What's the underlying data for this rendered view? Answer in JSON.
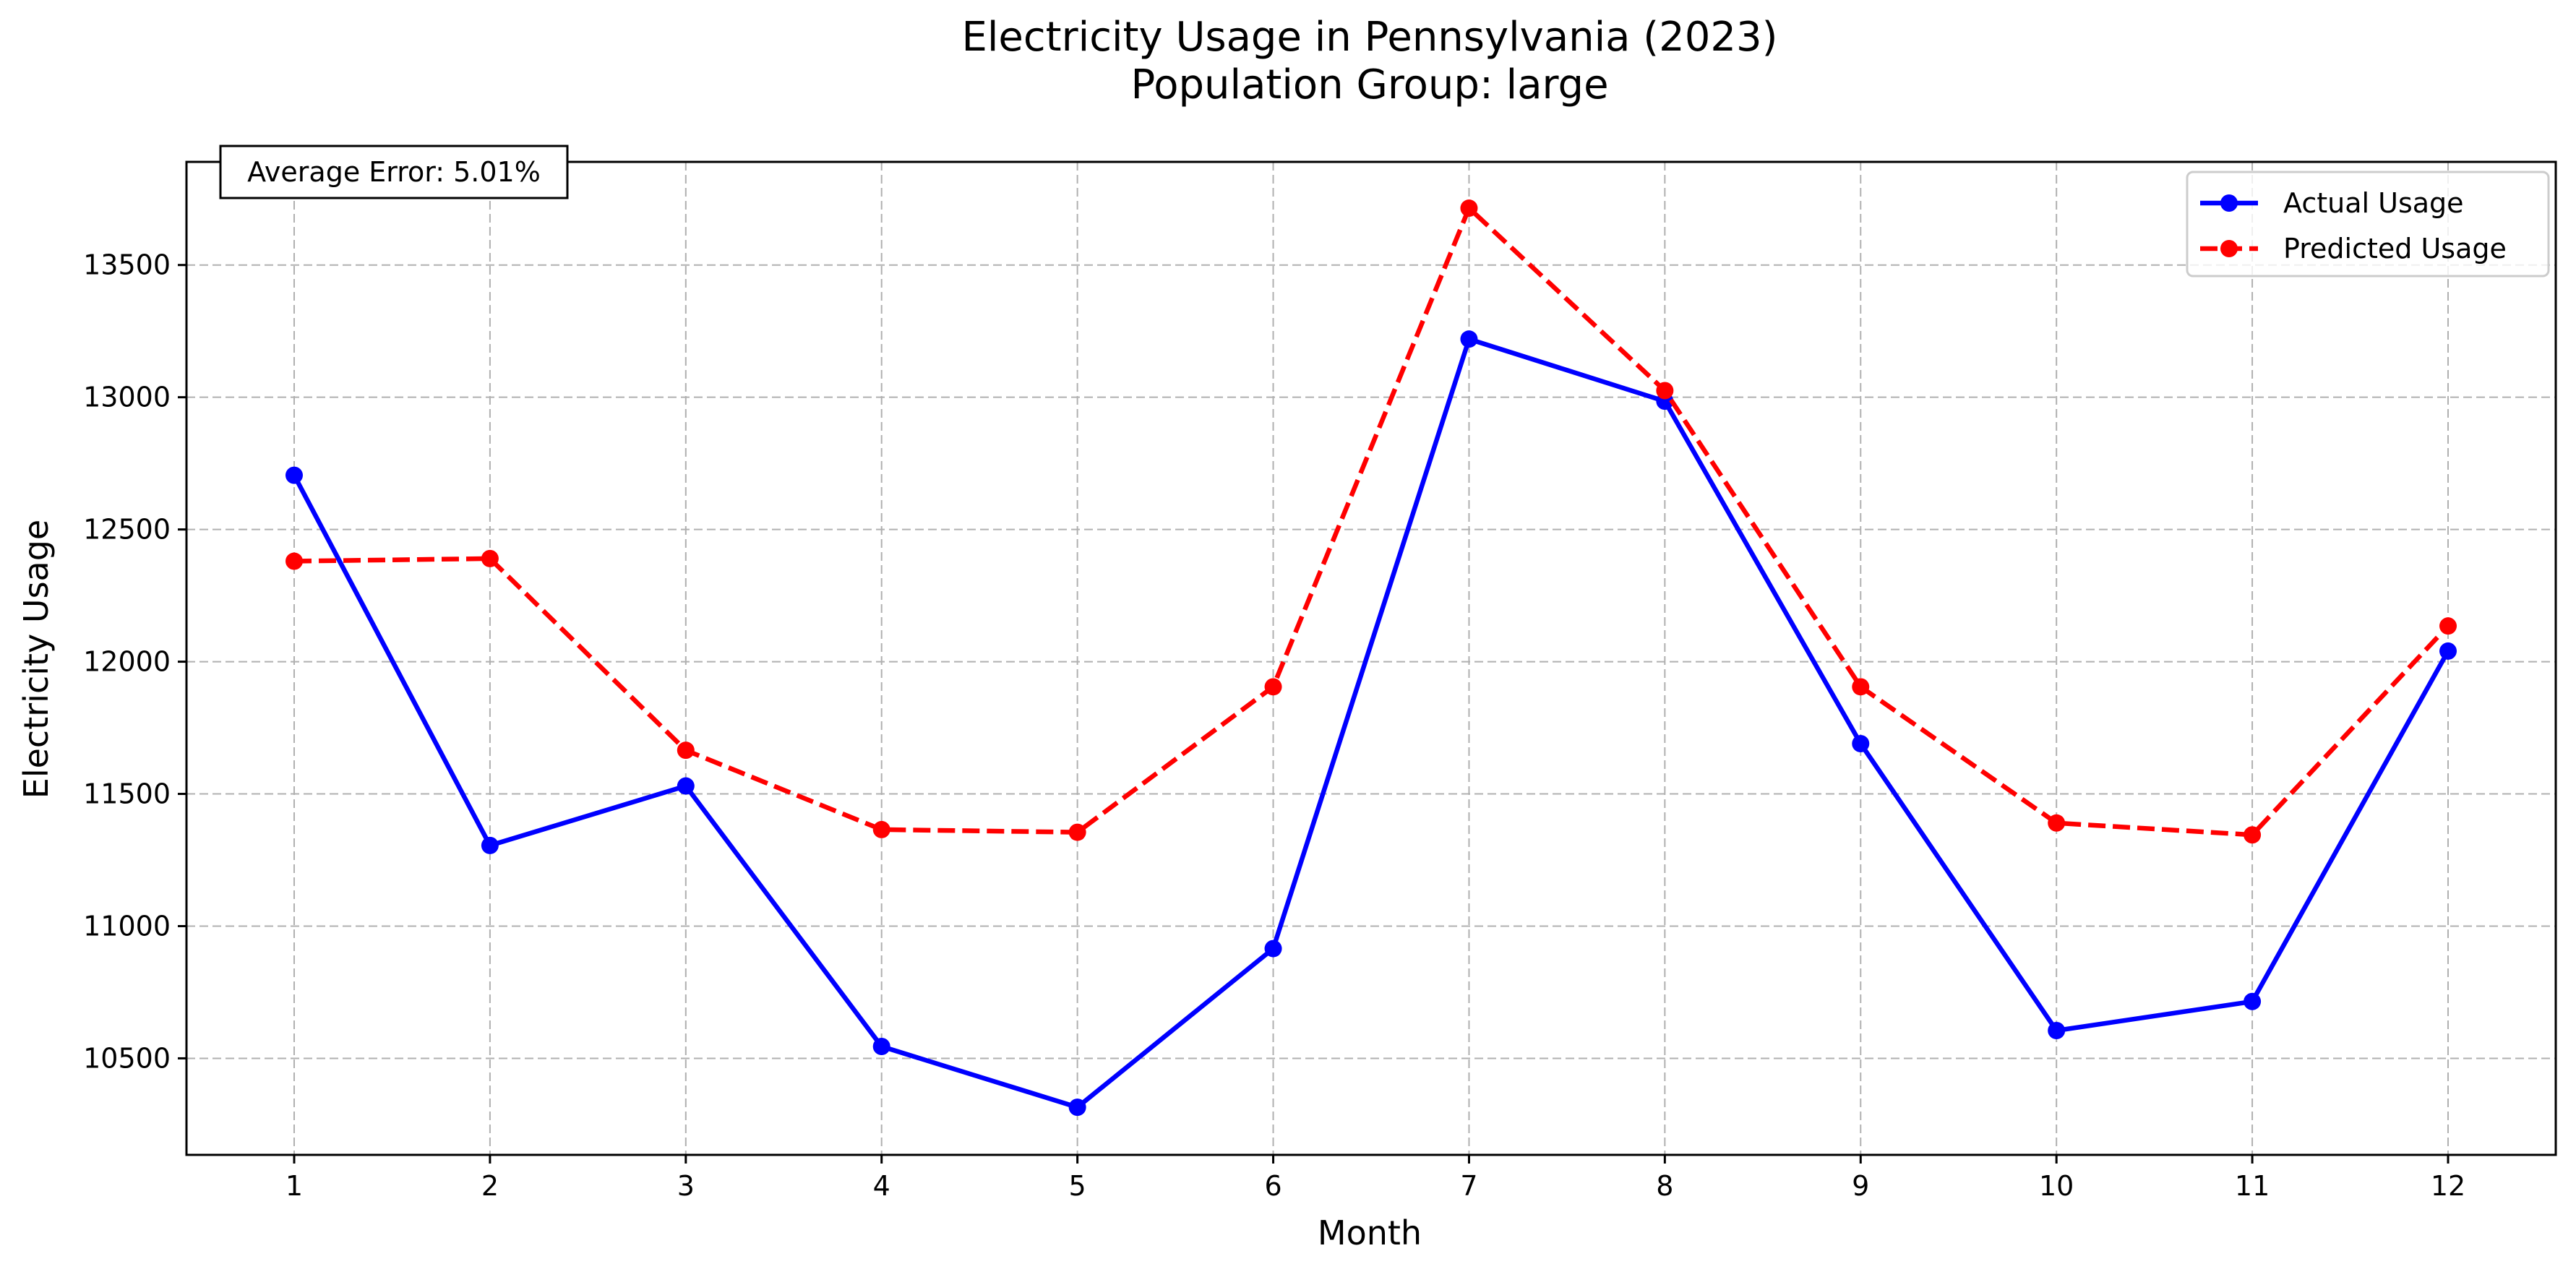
{
  "chart_data": {
    "type": "line",
    "title": "Electricity Usage in Pennsylvania (2023)",
    "subtitle": "Population Group: large",
    "xlabel": "Month",
    "ylabel": "Electricity Usage",
    "x": [
      1,
      2,
      3,
      4,
      5,
      6,
      7,
      8,
      9,
      10,
      11,
      12
    ],
    "x_tick_labels": [
      "1",
      "2",
      "3",
      "4",
      "5",
      "6",
      "7",
      "8",
      "9",
      "10",
      "11",
      "12"
    ],
    "xlim": [
      0.45,
      12.55
    ],
    "ylim": [
      10135,
      13890
    ],
    "y_ticks": [
      10500,
      11000,
      11500,
      12000,
      12500,
      13000,
      13500
    ],
    "y_tick_labels": [
      "10500",
      "11000",
      "11500",
      "12000",
      "12500",
      "13000",
      "13500"
    ],
    "grid": true,
    "legend_position": "top-right",
    "annotation": "Average Error: 5.01%",
    "series": [
      {
        "name": "Actual Usage",
        "color": "#0000ff",
        "line_style": "solid",
        "marker": "circle",
        "values": [
          12705,
          11305,
          11530,
          10545,
          10315,
          10915,
          13220,
          12985,
          11690,
          10605,
          10715,
          12040
        ]
      },
      {
        "name": "Predicted Usage",
        "color": "#ff0000",
        "line_style": "dashed",
        "marker": "circle",
        "values": [
          12380,
          12390,
          11665,
          11365,
          11355,
          11905,
          13715,
          13025,
          11905,
          11390,
          11345,
          12135
        ]
      }
    ]
  }
}
